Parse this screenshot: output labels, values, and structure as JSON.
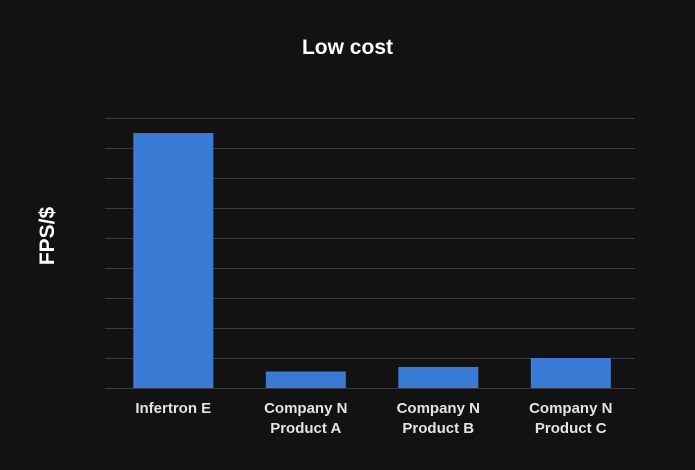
{
  "chart_data": {
    "type": "bar",
    "title": "Low cost",
    "xlabel": "",
    "ylabel": "FPS/$",
    "categories": [
      [
        "Infertron E"
      ],
      [
        "Company N",
        "Product A"
      ],
      [
        "Company N",
        "Product B"
      ],
      [
        "Company N",
        "Product C"
      ]
    ],
    "values": [
      8.5,
      0.55,
      0.7,
      1.0
    ],
    "ylim": [
      0,
      9
    ],
    "grid_lines": 9,
    "y_tick_labels_shown": false,
    "legend": "none",
    "colors": {
      "bar": "#3a7bd5",
      "background": "#121212",
      "grid": "#3a3a3a",
      "text": "#ffffff",
      "category_text": "#e3e3e3"
    }
  }
}
